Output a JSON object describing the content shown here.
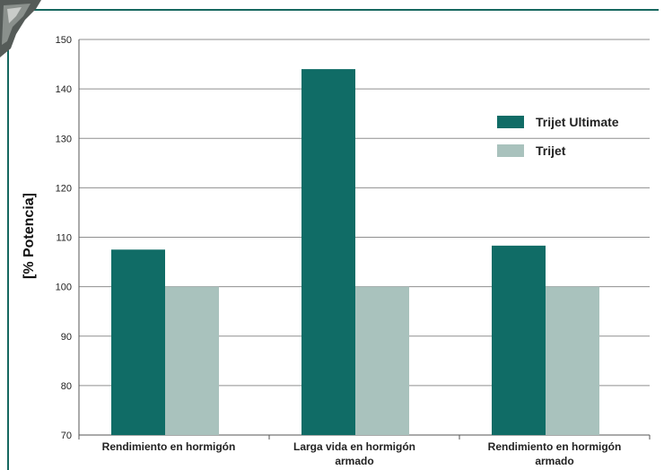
{
  "chart_data": {
    "type": "bar",
    "categories": [
      "Rendimiento en hormigón",
      "Larga vida en hormigón armado",
      "Rendimiento en hormigón armado"
    ],
    "series": [
      {
        "name": "Trijet Ultimate",
        "color": "#106c66",
        "values": [
          107.5,
          144,
          108.3
        ]
      },
      {
        "name": "Trijet",
        "color": "#a9c2bd",
        "values": [
          100,
          100,
          100
        ]
      }
    ],
    "title": "",
    "xlabel": "",
    "ylabel": "[% Potencia]",
    "ylim": [
      70,
      150
    ],
    "yticks": [
      "70",
      "80",
      "90",
      "100",
      "110",
      "120",
      "130",
      "140",
      "150"
    ],
    "grid": true,
    "legend_position": "right",
    "frame_color": "#16675f"
  }
}
